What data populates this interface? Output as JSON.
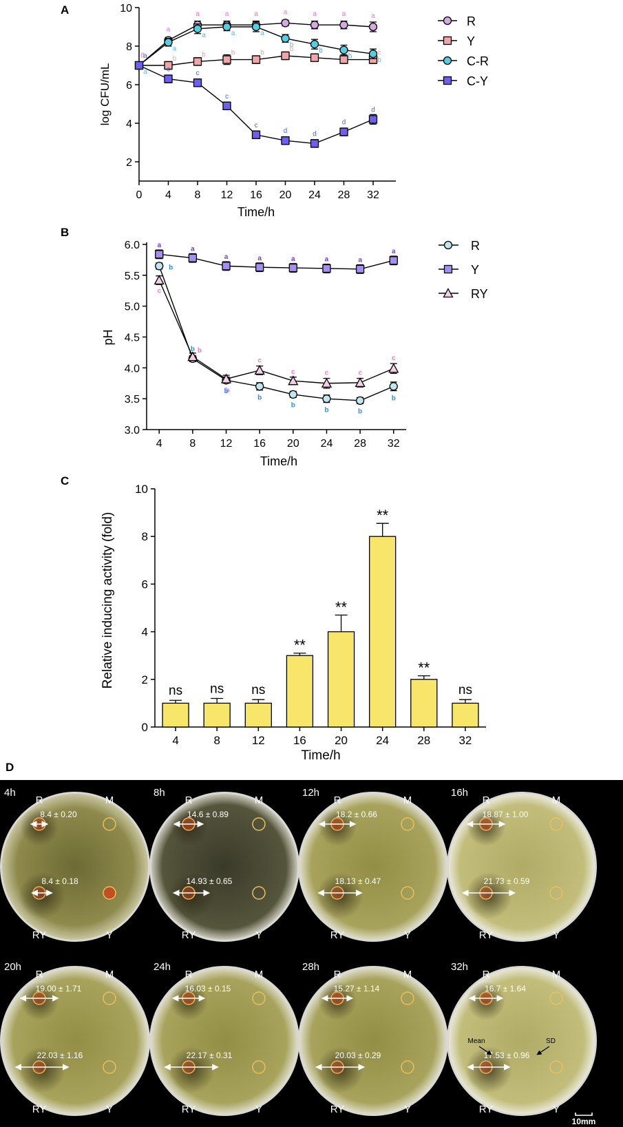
{
  "panel_labels": {
    "a": "A",
    "b": "B",
    "c": "C",
    "d": "D"
  },
  "colors": {
    "R": "#d7a9e3",
    "Y": "#f0a5a8",
    "CR": "#4fd0e3",
    "CY": "#6f5ff0",
    "phR": "#bfe6f0",
    "phY": "#a48ff0",
    "phRY": "#f5cde6",
    "bar": "#f7e66a",
    "letterA": "#e07ad0",
    "letterB": "#2f8fe8",
    "letterC": "#f07bc8",
    "letterBlue": "#3a6de0",
    "letterPurple": "#7c3ad8"
  },
  "chart_data": [
    {
      "id": "A",
      "type": "line",
      "xlabel": "Time/h",
      "ylabel": "log CFU/mL",
      "xlim": [
        0,
        32
      ],
      "ylim": [
        1,
        10
      ],
      "xticks": [
        "0",
        "4",
        "8",
        "12",
        "16",
        "20",
        "24",
        "28",
        "32"
      ],
      "yticks": [
        "2",
        "4",
        "6",
        "8",
        "10"
      ],
      "x": [
        0,
        4,
        8,
        12,
        16,
        20,
        24,
        28,
        32
      ],
      "series": [
        {
          "name": "R",
          "marker": "circle",
          "color_key": "R",
          "values": [
            7.0,
            8.3,
            9.1,
            9.1,
            9.1,
            9.2,
            9.1,
            9.1,
            9.0
          ],
          "err": [
            0.15,
            0.15,
            0.2,
            0.2,
            0.2,
            0.15,
            0.2,
            0.2,
            0.25
          ],
          "labels": [
            "a",
            "a",
            "a",
            "a",
            "a",
            "a",
            "a",
            "a",
            "a"
          ]
        },
        {
          "name": "Y",
          "marker": "square",
          "color_key": "Y",
          "values": [
            7.0,
            7.0,
            7.2,
            7.3,
            7.3,
            7.5,
            7.4,
            7.3,
            7.3
          ],
          "err": [
            0.15,
            0.2,
            0.2,
            0.25,
            0.2,
            0.2,
            0.2,
            0.2,
            0.2
          ],
          "labels": [
            "b",
            "b",
            "b",
            "b",
            "b",
            "b",
            "c",
            "c",
            "c"
          ]
        },
        {
          "name": "C-R",
          "marker": "circle",
          "color_key": "CR",
          "values": [
            7.0,
            8.2,
            8.9,
            9.0,
            9.0,
            8.4,
            8.1,
            7.8,
            7.6
          ],
          "err": [
            0.15,
            0.2,
            0.25,
            0.2,
            0.25,
            0.2,
            0.25,
            0.25,
            0.25
          ],
          "labels": [
            "a",
            "a",
            "a",
            "a",
            "a",
            "b",
            "b",
            "b",
            "b"
          ]
        },
        {
          "name": "C-Y",
          "marker": "square",
          "color_key": "CY",
          "values": [
            7.0,
            6.3,
            6.1,
            4.9,
            3.4,
            3.1,
            2.95,
            3.55,
            4.2
          ],
          "err": [
            0.15,
            0.2,
            0.2,
            0.2,
            0.2,
            0.2,
            0.2,
            0.2,
            0.25
          ],
          "labels": [
            "a",
            "c",
            "c",
            "c",
            "c",
            "d",
            "d",
            "d",
            "d"
          ]
        }
      ]
    },
    {
      "id": "B",
      "type": "line",
      "xlabel": "Time/h",
      "ylabel": "pH",
      "xlim": [
        2.5,
        33.5
      ],
      "ylim": [
        3.0,
        6.0
      ],
      "xticks": [
        "4",
        "8",
        "12",
        "16",
        "20",
        "24",
        "28",
        "32"
      ],
      "yticks": [
        "3.0",
        "3.5",
        "4.0",
        "4.5",
        "5.0",
        "5.5",
        "6.0"
      ],
      "x": [
        4,
        8,
        12,
        16,
        20,
        24,
        28,
        32
      ],
      "series": [
        {
          "name": "R",
          "marker": "circle",
          "color_key": "phR",
          "values": [
            5.65,
            4.15,
            3.8,
            3.7,
            3.57,
            3.5,
            3.47,
            3.7
          ],
          "err": [
            0.05,
            0.05,
            0.05,
            0.06,
            0.05,
            0.06,
            0.05,
            0.07
          ],
          "labels": [
            "b",
            "b",
            "b",
            "b",
            "b",
            "b",
            "b",
            "b"
          ]
        },
        {
          "name": "Y",
          "marker": "square",
          "color_key": "phY",
          "values": [
            5.84,
            5.78,
            5.65,
            5.63,
            5.62,
            5.61,
            5.6,
            5.74
          ],
          "err": [
            0.07,
            0.07,
            0.07,
            0.07,
            0.07,
            0.07,
            0.07,
            0.07
          ],
          "labels": [
            "a",
            "a",
            "a",
            "a",
            "a",
            "a",
            "a",
            "a"
          ]
        },
        {
          "name": "RY",
          "marker": "triangle",
          "color_key": "phRY",
          "values": [
            5.42,
            4.18,
            3.82,
            3.96,
            3.79,
            3.75,
            3.76,
            3.99
          ],
          "err": [
            0.07,
            0.06,
            0.06,
            0.07,
            0.06,
            0.08,
            0.07,
            0.08
          ],
          "labels": [
            "c",
            "b",
            "b",
            "c",
            "c",
            "c",
            "c",
            "c"
          ]
        }
      ]
    },
    {
      "id": "C",
      "type": "bar",
      "xlabel": "Time/h",
      "ylabel": "Relative inducing activity (fold)",
      "ylim": [
        0,
        10
      ],
      "yticks": [
        "0",
        "2",
        "4",
        "6",
        "8",
        "10"
      ],
      "categories": [
        "4",
        "8",
        "12",
        "16",
        "20",
        "24",
        "28",
        "32"
      ],
      "values": [
        1.0,
        1.0,
        1.0,
        3.0,
        4.0,
        8.0,
        2.0,
        1.0
      ],
      "err": [
        0.12,
        0.2,
        0.15,
        0.1,
        0.7,
        0.55,
        0.15,
        0.15
      ],
      "annotations": [
        "ns",
        "ns",
        "ns",
        "**",
        "**",
        "**",
        "**",
        "ns"
      ]
    }
  ],
  "plates": {
    "scale_label": "10mm",
    "items": [
      {
        "time": "4h",
        "label_r": "R",
        "label_m": "M",
        "label_ry": "RY",
        "label_y": "Y",
        "top": "8.4 ± 0.20",
        "bottom": "8.4 ± 0.18",
        "bg": "dark-olive"
      },
      {
        "time": "8h",
        "label_r": "R",
        "label_m": "M",
        "label_ry": "RY",
        "label_y": "Y",
        "top": "14.6 ± 0.89",
        "bottom": "14.93 ±  0.65",
        "bg": "dark"
      },
      {
        "time": "12h",
        "label_r": "R",
        "label_m": "M",
        "label_ry": "RY",
        "label_y": "Y",
        "top": "18.2 ± 0.66",
        "bottom": "18.13 ± 0.47",
        "bg": "olive"
      },
      {
        "time": "16h",
        "label_r": "R",
        "label_m": "M",
        "label_ry": "RY",
        "label_y": "Y",
        "top": "18.87 ± 1.00",
        "bottom": "21.73 ± 0.59",
        "bg": "light-olive"
      },
      {
        "time": "20h",
        "label_r": "R",
        "label_m": "M",
        "label_ry": "RY",
        "label_y": "Y",
        "top": "19.00 ± 1.71",
        "bottom": "22.03 ± 1.16",
        "bg": "olive"
      },
      {
        "time": "24h",
        "label_r": "R",
        "label_m": "M",
        "label_ry": "RY",
        "label_y": "Y",
        "top": "16.03 ± 0.15",
        "bottom": "22.17 ± 0.31",
        "bg": "olive"
      },
      {
        "time": "28h",
        "label_r": "R",
        "label_m": "M",
        "label_ry": "RY",
        "label_y": "Y",
        "top": "15.27 ± 1.14",
        "bottom": "20.03 ± 0.29",
        "bg": "olive"
      },
      {
        "time": "32h",
        "label_r": "R",
        "label_m": "M",
        "label_ry": "RY",
        "label_y": "Y",
        "top": "16.7 ± 1.64",
        "bottom": "17.53 ± 0.96",
        "bg": "light-olive",
        "mean_label": "Mean",
        "sd_label": "SD"
      }
    ]
  }
}
